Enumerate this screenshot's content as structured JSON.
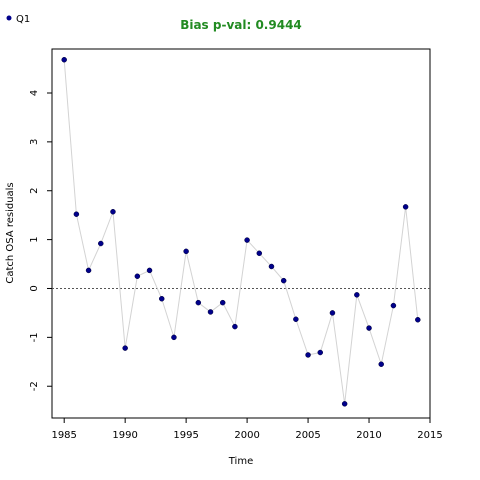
{
  "chart_data": {
    "type": "scatter",
    "title": "Bias p-val: 0.9444",
    "title_color": "#228B22",
    "xlabel": "Time",
    "ylabel": "Catch OSA residuals",
    "xlim": [
      1984,
      2015
    ],
    "ylim": [
      -2.65,
      4.9
    ],
    "xticks": [
      1985,
      1990,
      1995,
      2000,
      2005,
      2010,
      2015
    ],
    "yticks": [
      -2,
      -1,
      0,
      1,
      2,
      3,
      4
    ],
    "reference_line": 0,
    "grid": false,
    "legend_position": "top-left",
    "point_color": "#00008B",
    "line_color": "#d3d3d3",
    "series": [
      {
        "name": "Q1",
        "x": [
          1985,
          1986,
          1987,
          1988,
          1989,
          1990,
          1991,
          1992,
          1993,
          1994,
          1995,
          1996,
          1997,
          1998,
          1999,
          2000,
          2001,
          2002,
          2003,
          2004,
          2005,
          2006,
          2007,
          2008,
          2009,
          2010,
          2011,
          2012,
          2013,
          2014
        ],
        "y": [
          4.68,
          1.52,
          0.37,
          0.92,
          1.57,
          -1.22,
          0.25,
          0.37,
          -0.21,
          -1.0,
          0.76,
          -0.29,
          -0.48,
          -0.29,
          -0.78,
          0.99,
          0.72,
          0.45,
          0.16,
          -0.63,
          -1.36,
          -1.31,
          -0.5,
          -2.36,
          -0.13,
          -0.81,
          -1.55,
          -0.35,
          1.67,
          -0.64
        ]
      }
    ]
  }
}
